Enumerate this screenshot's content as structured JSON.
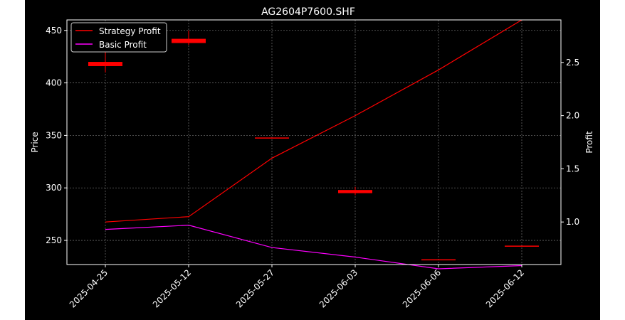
{
  "chart_data": {
    "type": "line",
    "title": "AG2604P7600.SHF",
    "x_categories": [
      "2025-04-25",
      "2025-05-12",
      "2025-05-27",
      "2025-06-03",
      "2025-06-06",
      "2025-06-12"
    ],
    "left_axis": {
      "label": "Price",
      "ylim": [
        227,
        460
      ],
      "ticks": [
        250,
        300,
        350,
        400,
        450
      ]
    },
    "right_axis": {
      "label": "Profit",
      "ylim": [
        0.6,
        2.9
      ],
      "ticks": [
        "1.0",
        "1.5",
        "2.0",
        "2.5"
      ]
    },
    "candles": [
      {
        "date": "2025-04-25",
        "open": 416,
        "close": 420,
        "high": 430,
        "low": 410
      },
      {
        "date": "2025-05-12",
        "open": 438,
        "close": 442,
        "high": 450,
        "low": 436
      },
      {
        "date": "2025-05-27",
        "open": 348,
        "close": 348,
        "high": 348,
        "low": 348
      },
      {
        "date": "2025-06-03",
        "open": 295,
        "close": 298,
        "high": 301,
        "low": 293
      },
      {
        "date": "2025-06-06",
        "open": 232,
        "close": 232,
        "high": 232,
        "low": 232
      },
      {
        "date": "2025-06-12",
        "open": 245,
        "close": 245,
        "high": 245,
        "low": 245
      }
    ],
    "series": [
      {
        "name": "Strategy Profit",
        "color": "#ff0000",
        "axis": "right",
        "values": [
          1.0,
          1.05,
          1.6,
          2.0,
          2.43,
          2.9
        ]
      },
      {
        "name": "Basic Profit",
        "color": "#ff00ff",
        "axis": "right",
        "values": [
          0.93,
          0.97,
          0.76,
          0.67,
          0.56,
          0.59
        ]
      }
    ],
    "candle_color": "#ff0000",
    "grid": true,
    "legend_position": "upper left",
    "background": "#000000"
  }
}
